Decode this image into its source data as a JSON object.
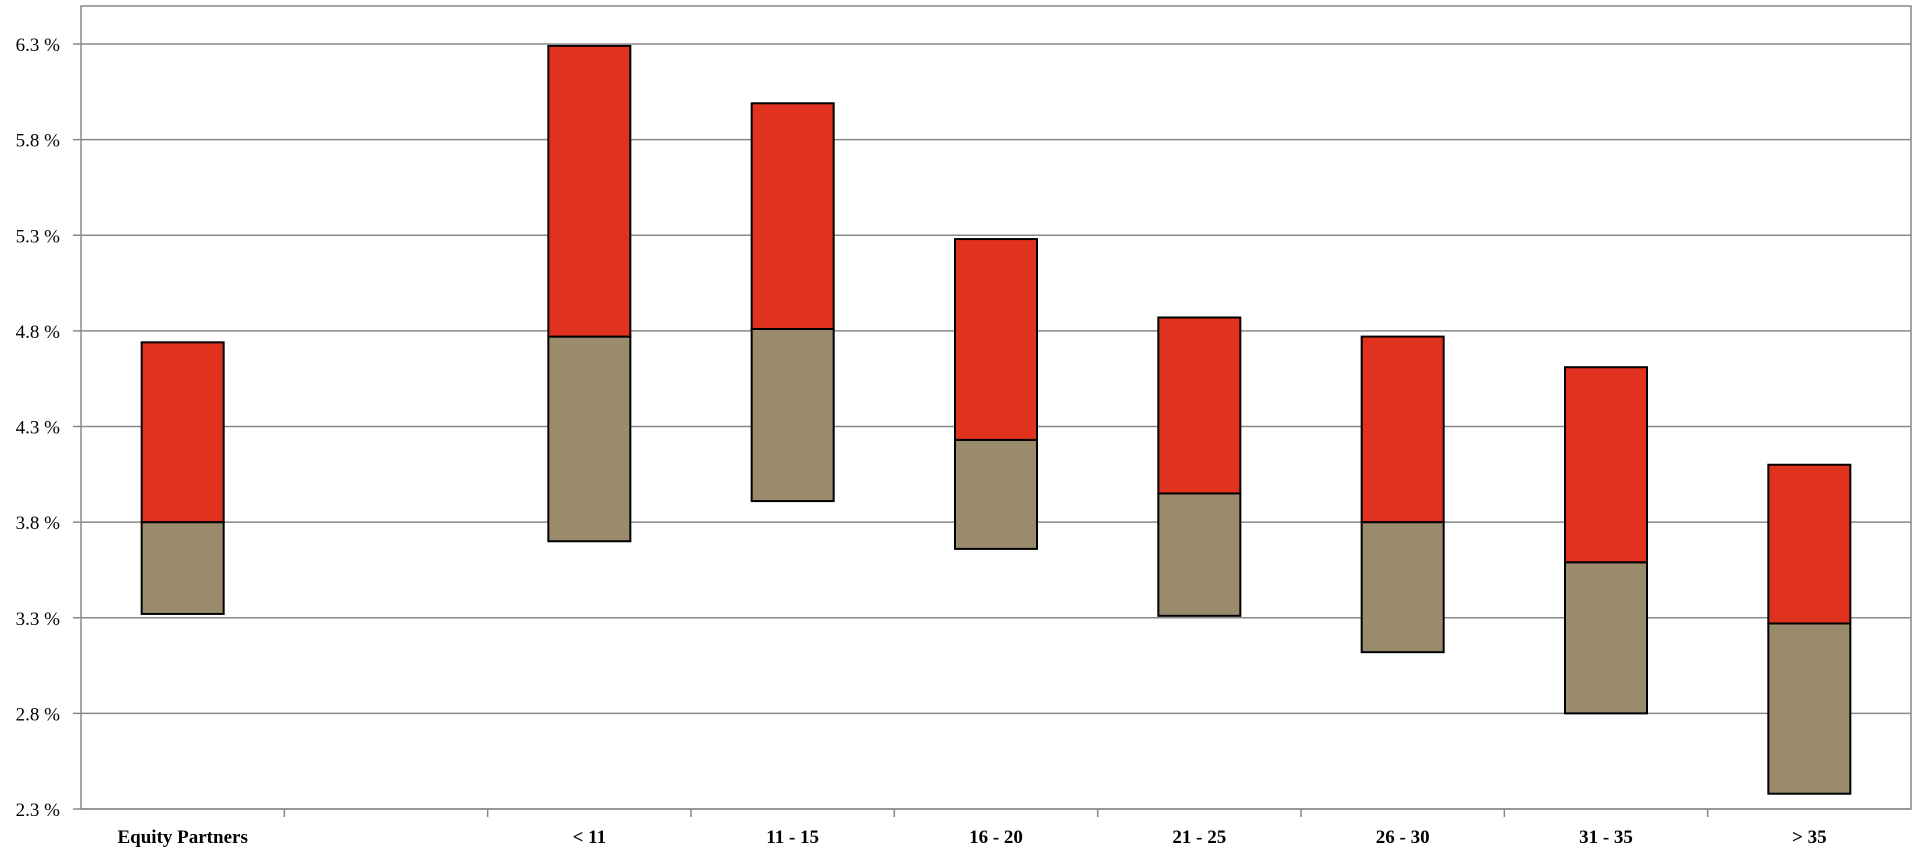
{
  "chart_data": {
    "type": "bar",
    "subtype": "floating-stacked",
    "title": "",
    "xlabel": "",
    "ylabel": "",
    "ylim": [
      2.3,
      6.3
    ],
    "y_ticks": [
      "2.3 %",
      "2.8 %",
      "3.3 %",
      "3.8 %",
      "4.3 %",
      "4.8 %",
      "5.3 %",
      "5.8 %",
      "6.3 %"
    ],
    "grid": true,
    "legend": "none",
    "categories": [
      "Equity Partners",
      "",
      "< 11",
      "11 - 15",
      "16 - 20",
      "21 - 25",
      "26 - 30",
      "31 - 35",
      "> 35"
    ],
    "series": [
      {
        "color": "#998b6c",
        "ranges": [
          [
            3.32,
            3.8
          ],
          null,
          [
            3.7,
            4.77
          ],
          [
            3.91,
            4.81
          ],
          [
            3.66,
            4.23
          ],
          [
            3.31,
            3.95
          ],
          [
            3.12,
            3.8
          ],
          [
            2.8,
            3.59
          ],
          [
            2.38,
            3.27
          ]
        ]
      },
      {
        "color": "#e0321f",
        "ranges": [
          [
            3.8,
            4.74
          ],
          null,
          [
            4.77,
            6.29
          ],
          [
            4.81,
            5.99
          ],
          [
            4.23,
            5.28
          ],
          [
            3.95,
            4.87
          ],
          [
            3.8,
            4.77
          ],
          [
            3.59,
            4.61
          ],
          [
            3.27,
            4.1
          ]
        ]
      }
    ]
  }
}
